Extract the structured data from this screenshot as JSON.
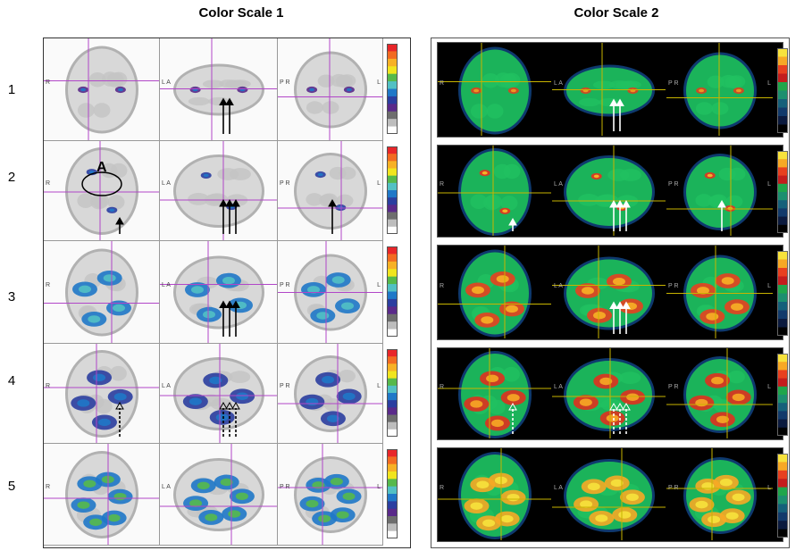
{
  "panels": {
    "left_title": "Color Scale 1",
    "right_title": "Color Scale 2"
  },
  "rows": [
    "1",
    "2",
    "3",
    "4",
    "5"
  ],
  "view_side_labels": {
    "axial_left": "R",
    "sagittal_left": "L A",
    "sagittal_right": "P R",
    "coronal_right": "L"
  },
  "region_label": "A",
  "colors": {
    "scale1_background": "#f4f4f4",
    "scale2_background": "#000000",
    "crosshair_scale1": "#b146c8",
    "crosshair_scale2": "#c8b400"
  },
  "colorbar_scale1": [
    "#e8262a",
    "#f26b22",
    "#f7b126",
    "#f1e51f",
    "#56b94b",
    "#52c0c4",
    "#1f78c8",
    "#2b3ea0",
    "#5a2a8a",
    "#6e6e6e",
    "#bdbdbd",
    "#ffffff"
  ],
  "colorbar_scale2": [
    "#f7e23c",
    "#f7a825",
    "#e8401f",
    "#c41d1d",
    "#1fa64b",
    "#1c8f6f",
    "#15607a",
    "#123a6b",
    "#0b1a3e",
    "#000000"
  ],
  "arrow_types": [
    "solid-black",
    "solid-white",
    "dashed-open-black",
    "dashed-open-white"
  ]
}
